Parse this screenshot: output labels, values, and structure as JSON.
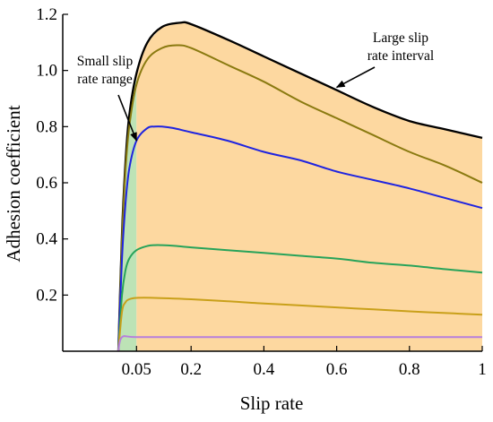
{
  "chart_data": {
    "type": "line",
    "xlabel": "Slip rate",
    "ylabel": "Adhesion coefficient",
    "xlim": [
      0,
      1
    ],
    "ylim": [
      0,
      1.2
    ],
    "x_ticks": [
      {
        "value": 0.05,
        "label": "0.05"
      },
      {
        "value": 0.2,
        "label": "0.2"
      },
      {
        "value": 0.4,
        "label": "0.4"
      },
      {
        "value": 0.6,
        "label": "0.6"
      },
      {
        "value": 0.8,
        "label": "0.8"
      },
      {
        "value": 1.0,
        "label": "1"
      }
    ],
    "y_ticks": [
      {
        "value": 0.2,
        "label": "0.2"
      },
      {
        "value": 0.4,
        "label": "0.4"
      },
      {
        "value": 0.6,
        "label": "0.6"
      },
      {
        "value": 0.8,
        "label": "0.8"
      },
      {
        "value": 1.0,
        "label": "1.0"
      },
      {
        "value": 1.2,
        "label": "1.2"
      }
    ],
    "grid": false,
    "regions": [
      {
        "label": "Small slip rate range",
        "x_range": [
          0,
          0.05
        ],
        "color": "#bde3b6"
      },
      {
        "label": "Large slip rate interval",
        "x_range": [
          0.05,
          1.0
        ],
        "color": "#fdd8a0"
      }
    ],
    "series": [
      {
        "color": "#000000",
        "x": [
          0,
          0.01,
          0.02,
          0.03,
          0.05,
          0.08,
          0.12,
          0.17,
          0.2,
          0.3,
          0.4,
          0.5,
          0.6,
          0.7,
          0.8,
          0.9,
          1.0
        ],
        "y": [
          0,
          0.42,
          0.68,
          0.84,
          0.99,
          1.1,
          1.155,
          1.17,
          1.165,
          1.11,
          1.05,
          0.99,
          0.93,
          0.87,
          0.82,
          0.79,
          0.76
        ]
      },
      {
        "color": "#8a7a10",
        "x": [
          0,
          0.01,
          0.02,
          0.03,
          0.05,
          0.08,
          0.12,
          0.16,
          0.2,
          0.3,
          0.4,
          0.5,
          0.6,
          0.7,
          0.8,
          0.9,
          1.0
        ],
        "y": [
          0,
          0.4,
          0.65,
          0.8,
          0.95,
          1.04,
          1.08,
          1.09,
          1.08,
          1.02,
          0.96,
          0.89,
          0.83,
          0.77,
          0.71,
          0.66,
          0.6
        ]
      },
      {
        "color": "#1f24e0",
        "x": [
          0,
          0.01,
          0.02,
          0.03,
          0.05,
          0.08,
          0.1,
          0.12,
          0.15,
          0.2,
          0.3,
          0.4,
          0.5,
          0.6,
          0.7,
          0.8,
          0.9,
          1.0
        ],
        "y": [
          0,
          0.33,
          0.53,
          0.65,
          0.75,
          0.795,
          0.8,
          0.8,
          0.795,
          0.78,
          0.75,
          0.71,
          0.68,
          0.64,
          0.61,
          0.58,
          0.545,
          0.51
        ]
      },
      {
        "color": "#27a35a",
        "x": [
          0,
          0.01,
          0.02,
          0.03,
          0.05,
          0.08,
          0.1,
          0.12,
          0.15,
          0.2,
          0.3,
          0.4,
          0.5,
          0.6,
          0.7,
          0.8,
          0.9,
          1.0
        ],
        "y": [
          0,
          0.2,
          0.29,
          0.33,
          0.36,
          0.375,
          0.378,
          0.378,
          0.376,
          0.37,
          0.36,
          0.35,
          0.34,
          0.33,
          0.315,
          0.305,
          0.292,
          0.28
        ]
      },
      {
        "color": "#c9a01a",
        "x": [
          0,
          0.01,
          0.02,
          0.03,
          0.05,
          0.1,
          0.2,
          0.3,
          0.4,
          0.5,
          0.6,
          0.7,
          0.8,
          0.9,
          1.0
        ],
        "y": [
          0,
          0.14,
          0.175,
          0.185,
          0.19,
          0.19,
          0.185,
          0.178,
          0.17,
          0.163,
          0.156,
          0.149,
          0.142,
          0.136,
          0.13
        ]
      },
      {
        "color": "#b77fdc",
        "x": [
          0,
          0.01,
          0.05,
          0.2,
          0.4,
          0.6,
          0.8,
          1.0
        ],
        "y": [
          0,
          0.05,
          0.05,
          0.05,
          0.05,
          0.05,
          0.05,
          0.05
        ]
      }
    ],
    "annotations": [
      {
        "lines": [
          "Small slip",
          "rate range"
        ],
        "arrow_to": [
          0.05,
          0.75
        ]
      },
      {
        "lines": [
          "Large slip",
          "rate interval"
        ],
        "arrow_to": [
          0.6,
          0.94
        ]
      }
    ]
  }
}
